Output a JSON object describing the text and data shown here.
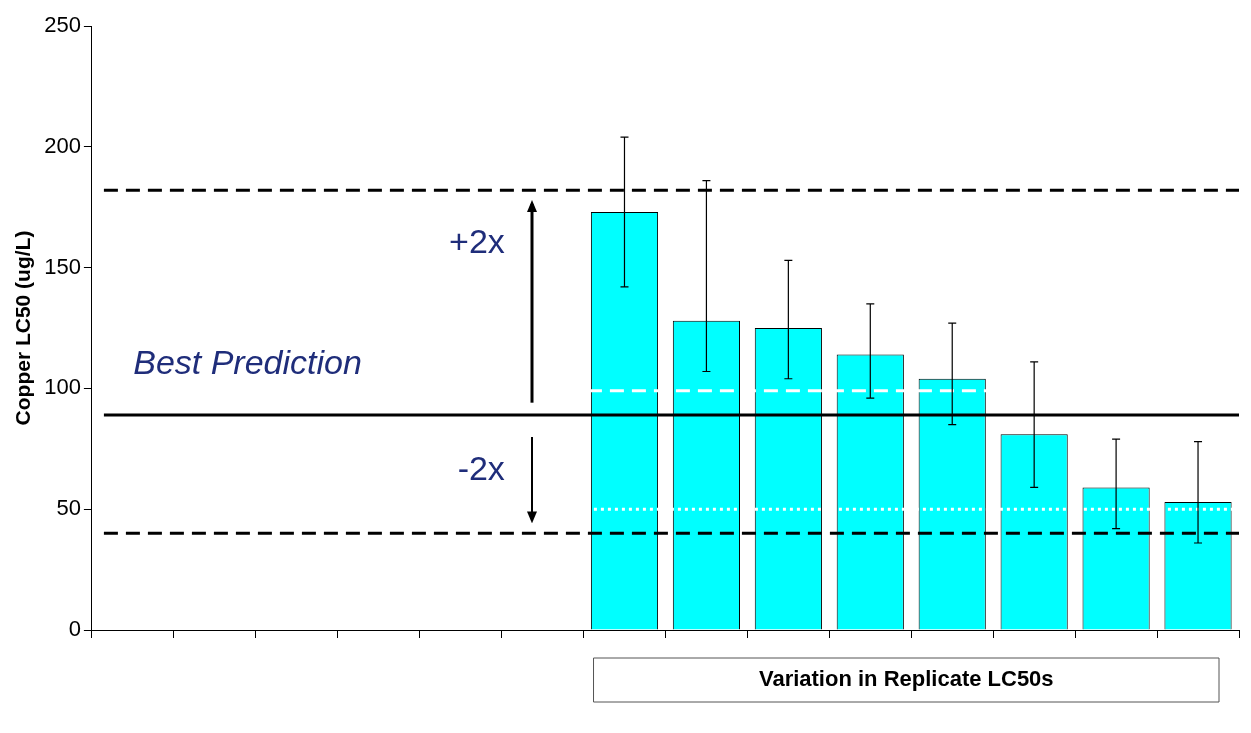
{
  "chart_data": {
    "type": "bar",
    "xlabel": "Variation in Replicate LC50s",
    "ylabel": "Copper LC50 (ug/L)",
    "categories": [
      null,
      null,
      null,
      null,
      null,
      null,
      null,
      null,
      null,
      null,
      null,
      null,
      null,
      null
    ],
    "values": [
      null,
      null,
      null,
      null,
      null,
      null,
      173,
      128,
      125,
      114,
      104,
      81,
      59,
      53
    ],
    "errors": [
      null,
      null,
      null,
      null,
      null,
      null,
      [
        142,
        204
      ],
      [
        107,
        186
      ],
      [
        104,
        153
      ],
      [
        96,
        135
      ],
      [
        85,
        127
      ],
      [
        59,
        111
      ],
      [
        42,
        79
      ],
      [
        36,
        78
      ]
    ],
    "color": "#00ffff",
    "ylim": [
      0,
      250
    ],
    "yticks": [
      0,
      50,
      100,
      150,
      200,
      250
    ],
    "ref_lines": [
      {
        "axis": "y",
        "value": 89,
        "color": "#000000",
        "line_style": "solid"
      },
      {
        "axis": "y",
        "value": 182,
        "color": "#000000",
        "line_style": "dashed"
      },
      {
        "axis": "y",
        "value": 40,
        "color": "#000000",
        "line_style": "dashed"
      },
      {
        "axis": "y",
        "value": 99,
        "color": "#ffffff",
        "line_style": "dashed"
      },
      {
        "axis": "y",
        "value": 50,
        "color": "#ffffff",
        "line_style": "dotted"
      }
    ],
    "annotations": [
      "Best Prediction",
      "+2x",
      "-2x"
    ],
    "grid": false,
    "legend": false
  }
}
